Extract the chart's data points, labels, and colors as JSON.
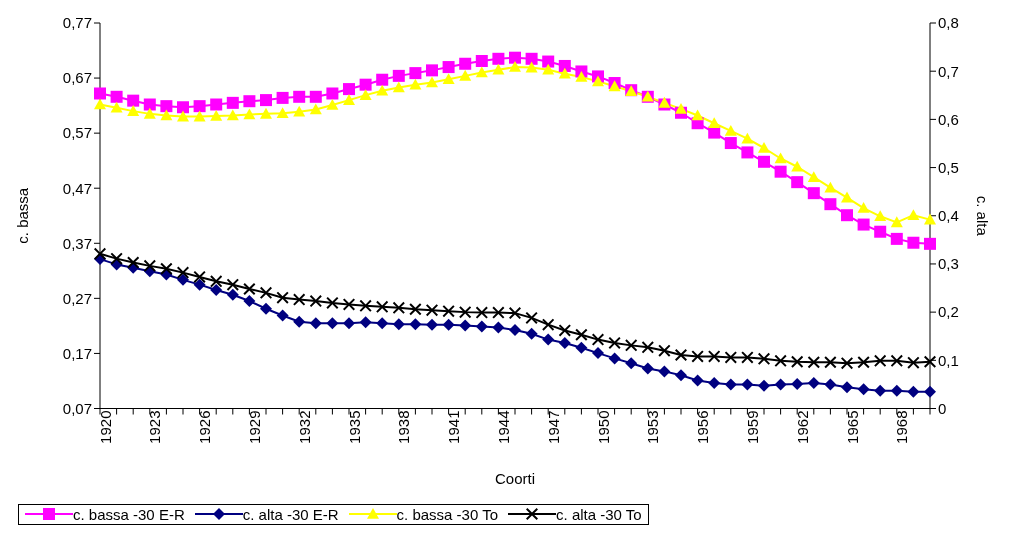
{
  "chart_data": {
    "type": "line",
    "xlabel": "Coorti",
    "ylabel": "c. bassa",
    "y2label": "c. alta",
    "categories": [
      "1920",
      null,
      null,
      "1923",
      null,
      null,
      "1926",
      null,
      null,
      "1929",
      null,
      null,
      "1932",
      null,
      null,
      "1935",
      null,
      null,
      "1938",
      null,
      null,
      "1941",
      null,
      null,
      "1944",
      null,
      null,
      "1947",
      null,
      null,
      "1950",
      null,
      null,
      "1953",
      null,
      null,
      "1956",
      null,
      null,
      "1959",
      null,
      null,
      "1962",
      null,
      null,
      "1965",
      null,
      null,
      "1968",
      null,
      null
    ],
    "ylim": [
      0.07,
      0.77
    ],
    "yticks": [
      {
        "value": 0.07,
        "label": "0,07"
      },
      {
        "value": 0.17,
        "label": "0,17"
      },
      {
        "value": 0.27,
        "label": "0,27"
      },
      {
        "value": 0.37,
        "label": "0,37"
      },
      {
        "value": 0.47,
        "label": "0,47"
      },
      {
        "value": 0.57,
        "label": "0,57"
      },
      {
        "value": 0.67,
        "label": "0,67"
      },
      {
        "value": 0.77,
        "label": "0,77"
      }
    ],
    "y2lim": [
      0,
      0.8
    ],
    "y2ticks": [
      0,
      {
        "value": 0.1,
        "label": "0,1"
      },
      {
        "value": 0.2,
        "label": "0,2"
      },
      {
        "value": 0.3,
        "label": "0,3"
      },
      {
        "value": 0.4,
        "label": "0,4"
      },
      {
        "value": 0.5,
        "label": "0,5"
      },
      {
        "value": 0.6,
        "label": "0,6"
      },
      {
        "value": 0.7,
        "label": "0,7"
      },
      {
        "value": 0.8,
        "label": "0,8"
      }
    ],
    "grid": false,
    "legend": "bottom",
    "line_style": "solid",
    "series": [
      {
        "name": "c. bassa -30 E-R",
        "color": "#ff00ff",
        "marker": "square",
        "values": [
          0.642,
          0.636,
          0.629,
          0.622,
          0.619,
          0.617,
          0.619,
          0.622,
          0.625,
          0.628,
          0.63,
          0.634,
          0.636,
          0.636,
          0.642,
          0.65,
          0.658,
          0.667,
          0.674,
          0.679,
          0.684,
          0.69,
          0.696,
          0.701,
          0.705,
          0.707,
          0.705,
          0.7,
          0.692,
          0.682,
          0.673,
          0.661,
          0.648,
          0.636,
          0.622,
          0.607,
          0.588,
          0.571,
          0.552,
          0.535,
          0.518,
          0.5,
          0.481,
          0.461,
          0.441,
          0.421,
          0.404,
          0.391,
          0.378,
          0.371,
          0.369
        ]
      },
      {
        "name": "c. alta -30 E-R",
        "color": "#000080",
        "marker": "diamond",
        "axis": "y2",
        "values": [
          0.31,
          0.299,
          0.292,
          0.285,
          0.278,
          0.267,
          0.257,
          0.246,
          0.236,
          0.223,
          0.207,
          0.193,
          0.18,
          0.177,
          0.177,
          0.177,
          0.179,
          0.177,
          0.175,
          0.175,
          0.174,
          0.174,
          0.172,
          0.17,
          0.168,
          0.163,
          0.155,
          0.143,
          0.136,
          0.126,
          0.115,
          0.104,
          0.094,
          0.083,
          0.077,
          0.069,
          0.058,
          0.053,
          0.05,
          0.05,
          0.047,
          0.05,
          0.051,
          0.053,
          0.05,
          0.044,
          0.04,
          0.037,
          0.037,
          0.035,
          0.035
        ]
      },
      {
        "name": "c. bassa -30 To",
        "color": "#ffff00",
        "marker": "triangle",
        "values": [
          0.622,
          0.616,
          0.61,
          0.605,
          0.602,
          0.6,
          0.6,
          0.601,
          0.602,
          0.604,
          0.605,
          0.606,
          0.609,
          0.613,
          0.621,
          0.63,
          0.639,
          0.647,
          0.653,
          0.658,
          0.662,
          0.668,
          0.674,
          0.68,
          0.685,
          0.69,
          0.689,
          0.685,
          0.678,
          0.672,
          0.664,
          0.655,
          0.646,
          0.636,
          0.625,
          0.614,
          0.602,
          0.588,
          0.574,
          0.56,
          0.543,
          0.524,
          0.509,
          0.49,
          0.471,
          0.453,
          0.434,
          0.419,
          0.408,
          0.421,
          0.413
        ]
      },
      {
        "name": "c. alta -30 To",
        "color": "#000000",
        "marker": "cross",
        "axis": "y2",
        "values": [
          0.321,
          0.311,
          0.303,
          0.296,
          0.29,
          0.282,
          0.273,
          0.264,
          0.257,
          0.248,
          0.24,
          0.23,
          0.226,
          0.223,
          0.219,
          0.216,
          0.213,
          0.211,
          0.209,
          0.206,
          0.204,
          0.202,
          0.2,
          0.199,
          0.199,
          0.198,
          0.188,
          0.174,
          0.162,
          0.153,
          0.143,
          0.136,
          0.131,
          0.127,
          0.12,
          0.111,
          0.108,
          0.108,
          0.106,
          0.106,
          0.103,
          0.099,
          0.097,
          0.096,
          0.096,
          0.094,
          0.096,
          0.099,
          0.099,
          0.095,
          0.097
        ]
      }
    ]
  }
}
